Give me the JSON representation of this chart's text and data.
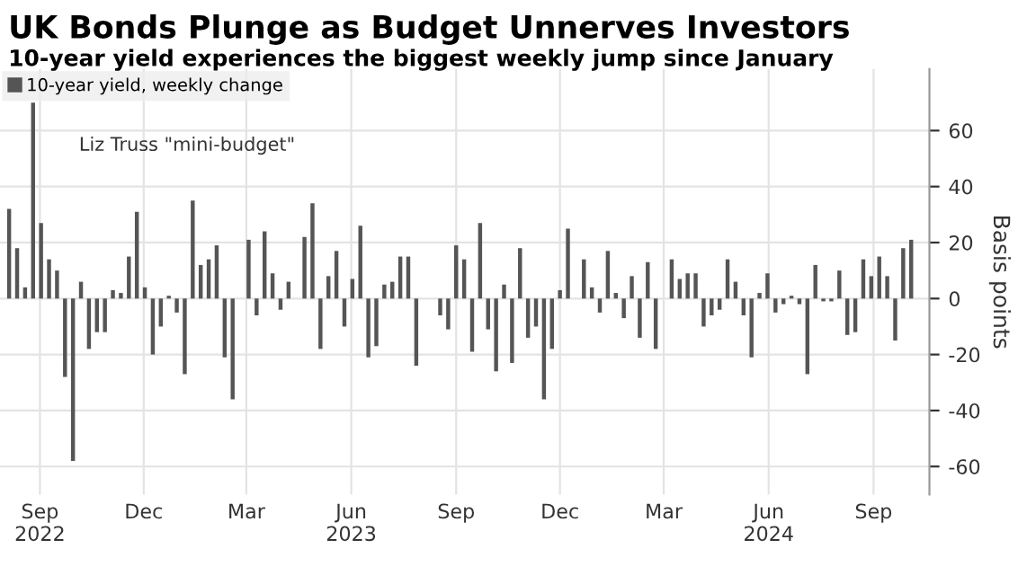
{
  "chart_data": {
    "type": "bar",
    "title": "UK Bonds Plunge as Budget Unnerves Investors",
    "subtitle": "10-year yield experiences the biggest weekly jump since January",
    "ylabel": "Basis points",
    "x": [
      "2022-08-05",
      "2022-08-12",
      "2022-08-19",
      "2022-08-26",
      "2022-09-02",
      "2022-09-09",
      "2022-09-16",
      "2022-09-23",
      "2022-09-30",
      "2022-10-07",
      "2022-10-14",
      "2022-10-21",
      "2022-10-28",
      "2022-11-04",
      "2022-11-11",
      "2022-11-18",
      "2022-11-25",
      "2022-12-02",
      "2022-12-09",
      "2022-12-16",
      "2022-12-23",
      "2022-12-30",
      "2023-01-06",
      "2023-01-13",
      "2023-01-20",
      "2023-01-27",
      "2023-02-03",
      "2023-02-10",
      "2023-02-17",
      "2023-02-24",
      "2023-03-03",
      "2023-03-10",
      "2023-03-17",
      "2023-03-24",
      "2023-03-31",
      "2023-04-07",
      "2023-04-14",
      "2023-04-21",
      "2023-04-28",
      "2023-05-05",
      "2023-05-12",
      "2023-05-19",
      "2023-05-26",
      "2023-06-02",
      "2023-06-09",
      "2023-06-16",
      "2023-06-23",
      "2023-06-30",
      "2023-07-07",
      "2023-07-14",
      "2023-07-21",
      "2023-07-28",
      "2023-08-04",
      "2023-08-11",
      "2023-08-18",
      "2023-08-25",
      "2023-09-01",
      "2023-09-08",
      "2023-09-15",
      "2023-09-22",
      "2023-09-29",
      "2023-10-06",
      "2023-10-13",
      "2023-10-20",
      "2023-10-27",
      "2023-11-03",
      "2023-11-10",
      "2023-11-17",
      "2023-11-24",
      "2023-12-01",
      "2023-12-08",
      "2023-12-15",
      "2023-12-22",
      "2023-12-29",
      "2024-01-05",
      "2024-01-12",
      "2024-01-19",
      "2024-01-26",
      "2024-02-02",
      "2024-02-09",
      "2024-02-16",
      "2024-02-23",
      "2024-03-01",
      "2024-03-08",
      "2024-03-15",
      "2024-03-22",
      "2024-03-29",
      "2024-04-05",
      "2024-04-12",
      "2024-04-19",
      "2024-04-26",
      "2024-05-03",
      "2024-05-10",
      "2024-05-17",
      "2024-05-24",
      "2024-05-31",
      "2024-06-07",
      "2024-06-14",
      "2024-06-21",
      "2024-06-28",
      "2024-07-05",
      "2024-07-12",
      "2024-07-19",
      "2024-07-26",
      "2024-08-02",
      "2024-08-09",
      "2024-08-16",
      "2024-08-23",
      "2024-08-30",
      "2024-09-06",
      "2024-09-13",
      "2024-09-20",
      "2024-09-27",
      "2024-10-04"
    ],
    "series": [
      {
        "name": "10-year yield, weekly change",
        "color": "#555555",
        "values": [
          32,
          18,
          4,
          70,
          27,
          14,
          10,
          -28,
          -58,
          6,
          -18,
          -12,
          -12,
          3,
          2,
          15,
          31,
          4,
          -20,
          -10,
          1,
          -5,
          -27,
          35,
          12,
          14,
          19,
          -21,
          -36,
          0,
          21,
          -6,
          24,
          9,
          -4,
          6,
          0,
          22,
          34,
          -18,
          8,
          17,
          -10,
          7,
          26,
          -21,
          -17,
          5,
          6,
          15,
          15,
          -24,
          0,
          0,
          -6,
          -11,
          19,
          14,
          -19,
          27,
          -11,
          -26,
          5,
          -23,
          18,
          -14,
          -10,
          -36,
          -18,
          3,
          25,
          0,
          14,
          4,
          -5,
          17,
          2,
          -7,
          8,
          -14,
          13,
          -18,
          0,
          14,
          7,
          9,
          9,
          -10,
          -6,
          -4,
          14,
          6,
          -6,
          -21,
          2,
          9,
          -5,
          -2,
          1,
          -2,
          -27,
          12,
          -1,
          -1,
          10,
          -13,
          -12,
          14,
          8,
          15,
          8,
          -15,
          18,
          21
        ]
      }
    ],
    "xlim": [
      "2022-07-28",
      "2024-10-20"
    ],
    "xticks": [
      {
        "value": "2022-09-01",
        "label": "Sep\n2022"
      },
      {
        "value": "2022-12-01",
        "label": "Dec"
      },
      {
        "value": "2023-03-01",
        "label": "Mar"
      },
      {
        "value": "2023-06-01",
        "label": "Jun\n2023"
      },
      {
        "value": "2023-09-01",
        "label": "Sep"
      },
      {
        "value": "2023-12-01",
        "label": "Dec"
      },
      {
        "value": "2024-03-01",
        "label": "Mar"
      },
      {
        "value": "2024-06-01",
        "label": "Jun\n2024"
      },
      {
        "value": "2024-09-01",
        "label": "Sep"
      }
    ],
    "ylim": [
      -70,
      82
    ],
    "yticks": [
      -60,
      -40,
      -20,
      0,
      20,
      40,
      60
    ],
    "grid": true,
    "legend": "top left",
    "annotations": [
      "Liz Truss \"mini-budget\""
    ]
  }
}
